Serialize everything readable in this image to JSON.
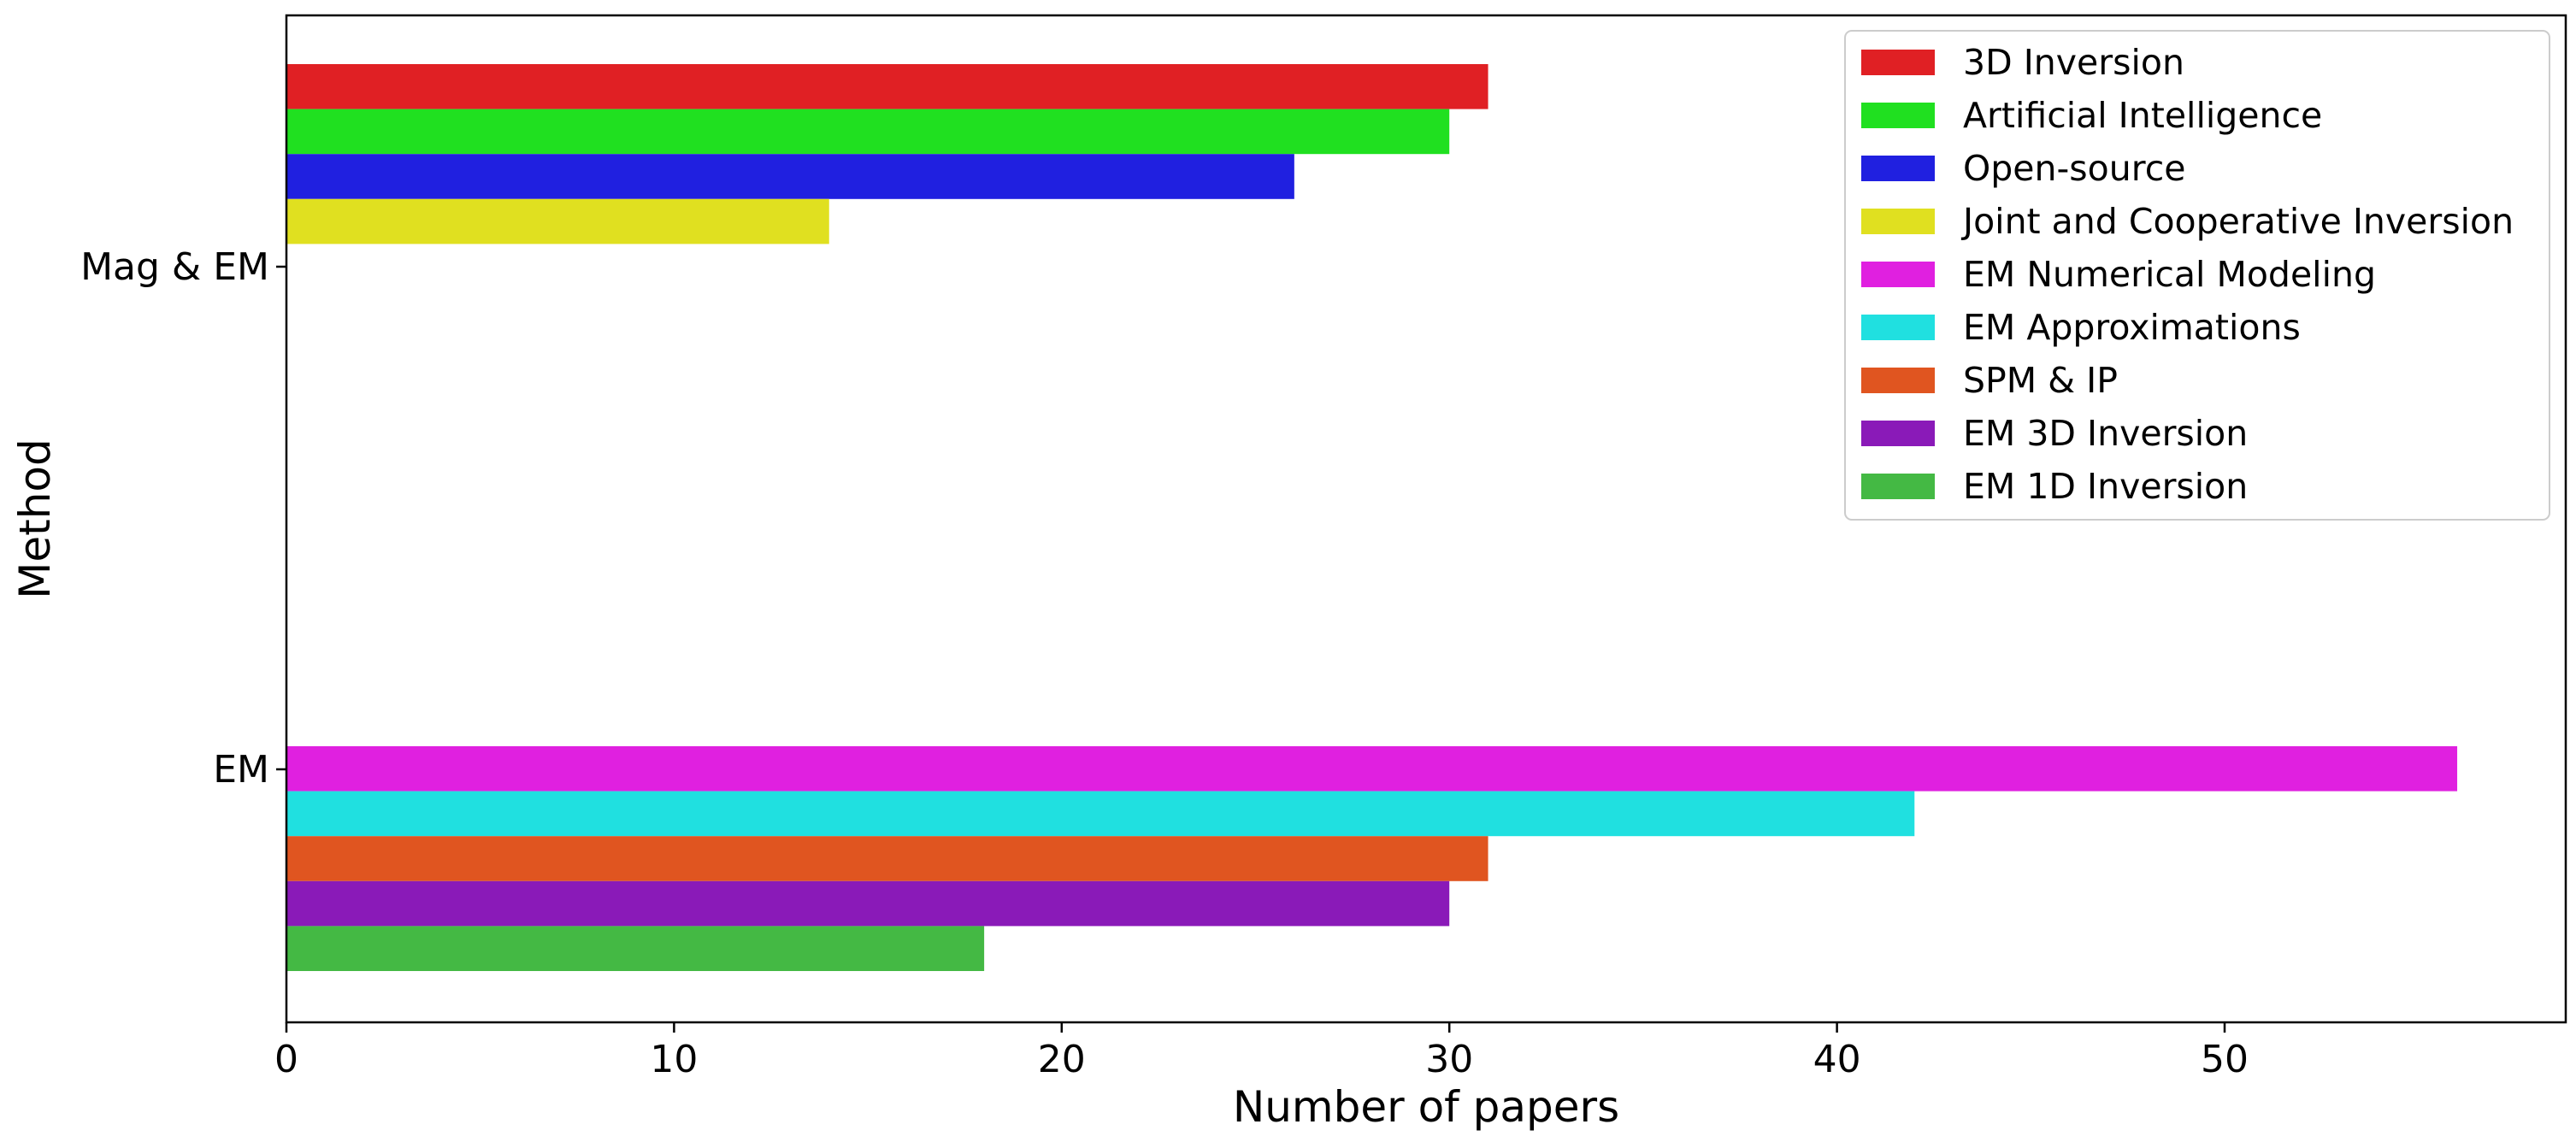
{
  "chart_data": {
    "type": "bar",
    "orientation": "horizontal",
    "title": "",
    "xlabel": "Number of papers",
    "ylabel": "Method",
    "xlim": [
      0,
      58.8
    ],
    "xticks": [
      0,
      10,
      20,
      30,
      40,
      50
    ],
    "categories": [
      "Mag & EM",
      "EM"
    ],
    "grid": false,
    "legend_position": "top-right",
    "groups": [
      {
        "category": "Mag & EM",
        "series": [
          {
            "name": "3D Inversion",
            "value": 31,
            "color": "#e02024"
          },
          {
            "name": "Artificial Intelligence",
            "value": 30,
            "color": "#20e020"
          },
          {
            "name": "Open-source",
            "value": 26,
            "color": "#2020e0"
          },
          {
            "name": "Joint and Cooperative Inversion",
            "value": 14,
            "color": "#e0e020"
          }
        ]
      },
      {
        "category": "EM",
        "series": [
          {
            "name": "EM Numerical Modeling",
            "value": 56,
            "color": "#e020e0"
          },
          {
            "name": "EM Approximations",
            "value": 42,
            "color": "#20e0e0"
          },
          {
            "name": "SPM & IP",
            "value": 31,
            "color": "#e05520"
          },
          {
            "name": "EM 3D Inversion",
            "value": 30,
            "color": "#8a1ab8"
          },
          {
            "name": "EM 1D Inversion",
            "value": 18,
            "color": "#44b944"
          }
        ]
      }
    ]
  }
}
